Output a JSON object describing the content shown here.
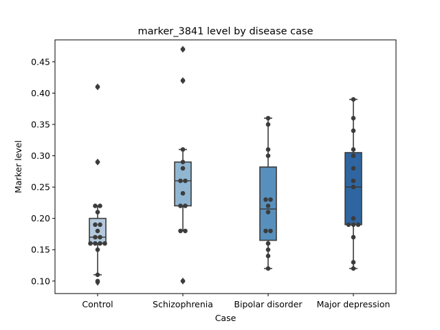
{
  "chart_data": {
    "type": "box",
    "title": "marker_3841 level by disease case",
    "xlabel": "Case",
    "ylabel": "Marker level",
    "ylim": [
      0.08,
      0.485
    ],
    "yticks": [
      0.1,
      0.15,
      0.2,
      0.25,
      0.3,
      0.35,
      0.4,
      0.45
    ],
    "ytick_labels": [
      "0.10",
      "0.15",
      "0.20",
      "0.25",
      "0.30",
      "0.35",
      "0.40",
      "0.45"
    ],
    "categories": [
      "Control",
      "Schizophrenia",
      "Bipolar disorder",
      "Major depression"
    ],
    "boxes": [
      {
        "q1": 0.16,
        "median": 0.17,
        "q3": 0.2,
        "whisker_low": 0.11,
        "whisker_high": 0.22,
        "outliers": [
          0.29,
          0.41,
          0.098
        ],
        "color": "#b4c9dc"
      },
      {
        "q1": 0.22,
        "median": 0.26,
        "q3": 0.29,
        "whisker_low": 0.18,
        "whisker_high": 0.31,
        "outliers": [
          0.42,
          0.47,
          0.1
        ],
        "color": "#90b6d2"
      },
      {
        "q1": 0.165,
        "median": 0.215,
        "q3": 0.282,
        "whisker_low": 0.12,
        "whisker_high": 0.36,
        "outliers": [],
        "color": "#5890bd"
      },
      {
        "q1": 0.19,
        "median": 0.25,
        "q3": 0.305,
        "whisker_low": 0.12,
        "whisker_high": 0.39,
        "outliers": [],
        "color": "#2f66a1"
      }
    ],
    "points": [
      [
        0.41,
        0.29,
        0.22,
        0.22,
        0.21,
        0.19,
        0.19,
        0.18,
        0.17,
        0.17,
        0.16,
        0.16,
        0.16,
        0.16,
        0.15,
        0.11,
        0.1
      ],
      [
        0.47,
        0.42,
        0.31,
        0.29,
        0.28,
        0.26,
        0.26,
        0.24,
        0.22,
        0.22,
        0.18,
        0.18,
        0.1
      ],
      [
        0.36,
        0.35,
        0.31,
        0.3,
        0.23,
        0.23,
        0.22,
        0.21,
        0.18,
        0.18,
        0.16,
        0.15,
        0.14,
        0.12
      ],
      [
        0.39,
        0.36,
        0.34,
        0.31,
        0.3,
        0.28,
        0.26,
        0.25,
        0.2,
        0.19,
        0.19,
        0.19,
        0.17,
        0.13,
        0.12
      ]
    ],
    "point_color": "#3c3c3c",
    "grid": false,
    "legend": "none"
  }
}
